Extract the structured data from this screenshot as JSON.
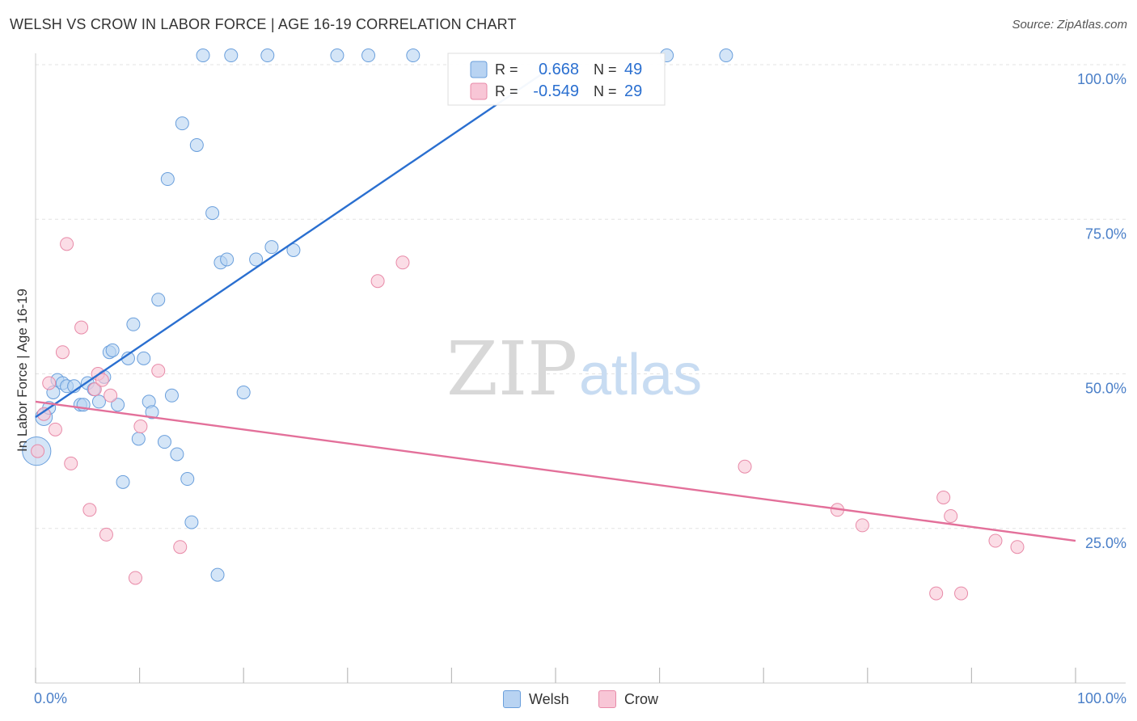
{
  "header": {
    "title": "WELSH VS CROW IN LABOR FORCE | AGE 16-19 CORRELATION CHART",
    "source": "Source: ZipAtlas.com"
  },
  "watermark": {
    "zip": "ZIP",
    "atlas": "atlas"
  },
  "colors": {
    "welsh_fill": "#b8d3f2",
    "welsh_stroke": "#6a9fdc",
    "welsh_line": "#2a6fd0",
    "crow_fill": "#f8c6d6",
    "crow_stroke": "#e88aa8",
    "crow_line": "#e3709a",
    "axis_label": "#4a7fc8",
    "grid": "#e3e3e3"
  },
  "chart_data": {
    "type": "scatter",
    "xlabel": "",
    "ylabel": "In Labor Force | Age 16-19",
    "xlim": [
      0,
      100
    ],
    "ylim": [
      0,
      100
    ],
    "x_tick_labels": [
      {
        "value": 0,
        "label": "0.0%"
      },
      {
        "value": 100,
        "label": "100.0%"
      }
    ],
    "y_tick_labels": [
      {
        "value": 25,
        "label": "25.0%"
      },
      {
        "value": 50,
        "label": "50.0%"
      },
      {
        "value": 75,
        "label": "75.0%"
      },
      {
        "value": 100,
        "label": "100.0%"
      }
    ],
    "grid": true,
    "legend_position": "top-center",
    "stats_legend": [
      {
        "series": "Welsh",
        "r_label": "R =",
        "r_value": "0.668",
        "n_label": "N =",
        "n_value": "49"
      },
      {
        "series": "Crow",
        "r_label": "R =",
        "r_value": "-0.549",
        "n_label": "N =",
        "n_value": "29"
      }
    ],
    "bottom_legend": [
      "Welsh",
      "Crow"
    ],
    "series": [
      {
        "name": "Welsh",
        "points": [
          [
            0.1,
            37.5,
            2.2
          ],
          [
            0.8,
            43,
            1.3
          ],
          [
            1.3,
            44.5,
            1
          ],
          [
            1.7,
            47,
            1
          ],
          [
            2.1,
            49,
            1
          ],
          [
            2.6,
            48.5,
            1
          ],
          [
            3,
            48,
            1
          ],
          [
            3.7,
            48,
            1
          ],
          [
            4.3,
            45,
            1
          ],
          [
            4.6,
            45,
            1
          ],
          [
            5,
            48.5,
            1
          ],
          [
            5.6,
            47.5,
            1
          ],
          [
            6.1,
            45.5,
            1
          ],
          [
            6.6,
            49.5,
            1
          ],
          [
            7.1,
            53.5,
            1
          ],
          [
            7.4,
            53.8,
            1
          ],
          [
            7.9,
            45,
            1
          ],
          [
            8.4,
            32.5,
            1
          ],
          [
            8.9,
            52.5,
            1
          ],
          [
            9.4,
            58,
            1
          ],
          [
            9.9,
            39.5,
            1
          ],
          [
            10.4,
            52.5,
            1
          ],
          [
            10.9,
            45.5,
            1
          ],
          [
            11.2,
            43.8,
            1
          ],
          [
            11.8,
            62,
            1
          ],
          [
            12.4,
            39,
            1
          ],
          [
            12.7,
            81.5,
            1
          ],
          [
            13.1,
            46.5,
            1
          ],
          [
            13.6,
            37,
            1
          ],
          [
            14.1,
            90.5,
            1
          ],
          [
            14.6,
            33,
            1
          ],
          [
            15,
            26,
            1
          ],
          [
            15.5,
            87,
            1
          ],
          [
            16.1,
            101.5,
            1
          ],
          [
            17,
            76,
            1
          ],
          [
            17.5,
            17.5,
            1
          ],
          [
            17.8,
            68,
            1
          ],
          [
            18.4,
            68.5,
            1
          ],
          [
            18.8,
            101.5,
            1
          ],
          [
            20,
            47,
            1
          ],
          [
            21.2,
            68.5,
            1
          ],
          [
            22.3,
            101.5,
            1
          ],
          [
            22.7,
            70.5,
            1
          ],
          [
            24.8,
            70,
            1
          ],
          [
            29,
            101.5,
            1
          ],
          [
            32,
            101.5,
            1
          ],
          [
            36.3,
            101.5,
            1
          ],
          [
            60.7,
            101.5,
            1
          ],
          [
            66.4,
            101.5,
            1
          ]
        ]
      },
      {
        "name": "Crow",
        "points": [
          [
            0.2,
            37.5,
            1
          ],
          [
            0.8,
            43.5,
            1
          ],
          [
            1.3,
            48.5,
            1
          ],
          [
            1.9,
            41,
            1
          ],
          [
            2.6,
            53.5,
            1
          ],
          [
            3,
            71,
            1
          ],
          [
            3.4,
            35.5,
            1
          ],
          [
            4.4,
            57.5,
            1
          ],
          [
            5.2,
            28,
            1
          ],
          [
            5.7,
            47.5,
            1
          ],
          [
            6,
            50,
            1
          ],
          [
            6.4,
            49,
            1
          ],
          [
            6.8,
            24,
            1
          ],
          [
            7.2,
            46.5,
            1
          ],
          [
            9.6,
            17,
            1
          ],
          [
            10.1,
            41.5,
            1
          ],
          [
            11.8,
            50.5,
            1
          ],
          [
            13.9,
            22,
            1
          ],
          [
            32.9,
            65,
            1
          ],
          [
            35.3,
            68,
            1
          ],
          [
            68.2,
            35,
            1
          ],
          [
            77.1,
            28,
            1
          ],
          [
            79.5,
            25.5,
            1
          ],
          [
            86.6,
            14.5,
            1
          ],
          [
            87.3,
            30,
            1
          ],
          [
            88,
            27,
            1
          ],
          [
            89,
            14.5,
            1
          ],
          [
            92.3,
            23,
            1
          ],
          [
            94.4,
            22,
            1
          ]
        ]
      }
    ],
    "trend_lines": [
      {
        "series": "Welsh",
        "x": [
          0,
          50
        ],
        "y": [
          43,
          100
        ]
      },
      {
        "series": "Crow",
        "x": [
          0,
          100
        ],
        "y": [
          45.5,
          23
        ]
      }
    ]
  }
}
